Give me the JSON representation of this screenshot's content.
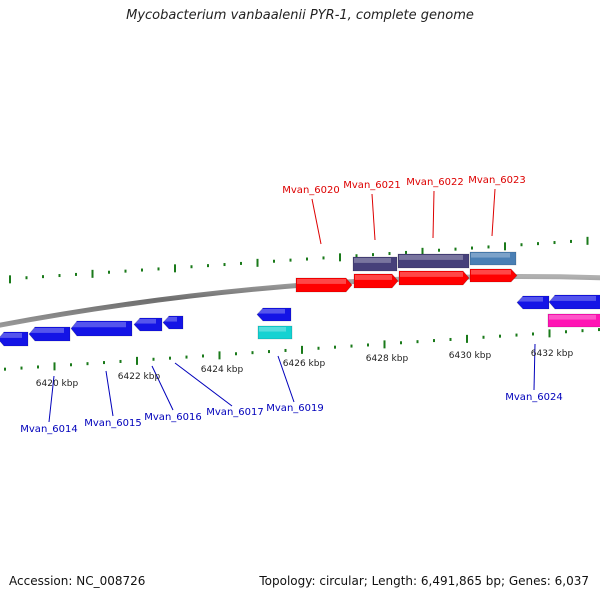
{
  "title": "Mycobacterium vanbaalenii PYR-1, complete genome",
  "footer": {
    "accession": "Accession: NC_008726",
    "summary": "Topology: circular; Length: 6,491,865 bp; Genes: 6,037"
  },
  "colors": {
    "backbone": "#808080",
    "tick": "#1a7a1a",
    "forward_label": "#dd0000",
    "reverse_label": "#0000bb",
    "cds_red": "#ff0000",
    "cds_blue": "#1414e6",
    "cds_cyan": "#14d2d2",
    "cds_magenta": "#ff14b4",
    "cds_navy": "#46407a",
    "cds_steel": "#4a7fb4"
  },
  "scale_labels": [
    "6420 kbp",
    "6422 kbp",
    "6424 kbp",
    "6426 kbp",
    "6428 kbp",
    "6430 kbp",
    "6432 kbp"
  ],
  "gene_labels": {
    "forward": [
      "Mvan_6020",
      "Mvan_6021",
      "Mvan_6022",
      "Mvan_6023"
    ],
    "reverse": [
      "Mvan_6014",
      "Mvan_6015",
      "Mvan_6016",
      "Mvan_6017",
      "Mvan_6019",
      "Mvan_6024"
    ]
  }
}
